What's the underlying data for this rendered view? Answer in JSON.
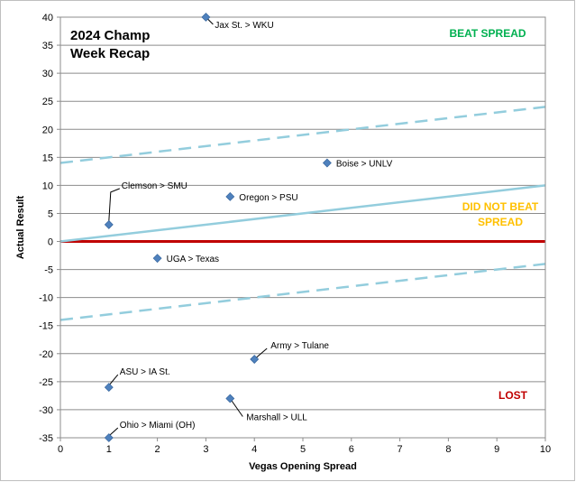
{
  "chart_data": {
    "type": "scatter",
    "title_lines": [
      "2024 Champ",
      "Week Recap"
    ],
    "xlabel": "Vegas Opening Spread",
    "ylabel": "Actual Result",
    "xlim": [
      0,
      10
    ],
    "ylim": [
      -35,
      40
    ],
    "x_ticks": [
      0,
      1,
      2,
      3,
      4,
      5,
      6,
      7,
      8,
      9,
      10
    ],
    "y_ticks": [
      40,
      35,
      30,
      25,
      20,
      15,
      10,
      5,
      0,
      -5,
      -10,
      -15,
      -20,
      -25,
      -30,
      -35
    ],
    "grid": "horizontal",
    "points": [
      {
        "x": 3,
        "y": 40,
        "label": "Jax St. > WKU"
      },
      {
        "x": 5.5,
        "y": 14,
        "label": "Boise > UNLV"
      },
      {
        "x": 3.5,
        "y": 8,
        "label": "Oregon > PSU"
      },
      {
        "x": 1,
        "y": 3,
        "label": "Clemson > SMU"
      },
      {
        "x": 2,
        "y": -3,
        "label": "UGA > Texas"
      },
      {
        "x": 4,
        "y": -21,
        "label": "Army > Tulane"
      },
      {
        "x": 1,
        "y": -26,
        "label": "ASU > IA St."
      },
      {
        "x": 3.5,
        "y": -28,
        "label": "Marshall > ULL"
      },
      {
        "x": 1,
        "y": -35,
        "label": "Ohio > Miami (OH)"
      }
    ],
    "reference_lines": [
      {
        "kind": "zero",
        "x": [
          0,
          10
        ],
        "y": [
          0,
          0
        ],
        "color": "#c00000",
        "style": "solid"
      },
      {
        "kind": "spread",
        "x": [
          0,
          10
        ],
        "y": [
          0,
          10
        ],
        "color": "#93cddd",
        "style": "solid"
      },
      {
        "kind": "upper",
        "x": [
          0,
          10
        ],
        "y": [
          14,
          24
        ],
        "color": "#93cddd",
        "style": "dashed"
      },
      {
        "kind": "lower",
        "x": [
          0,
          10
        ],
        "y": [
          -14,
          -4
        ],
        "color": "#93cddd",
        "style": "dashed"
      }
    ],
    "zone_labels": [
      {
        "lines": [
          "BEAT SPREAD"
        ],
        "color": "#00b050"
      },
      {
        "lines": [
          "DID NOT BEAT",
          "SPREAD"
        ],
        "color": "#ffc000"
      },
      {
        "lines": [
          "LOST"
        ],
        "color": "#c00000"
      }
    ],
    "marker_color": "#4f81bd"
  }
}
